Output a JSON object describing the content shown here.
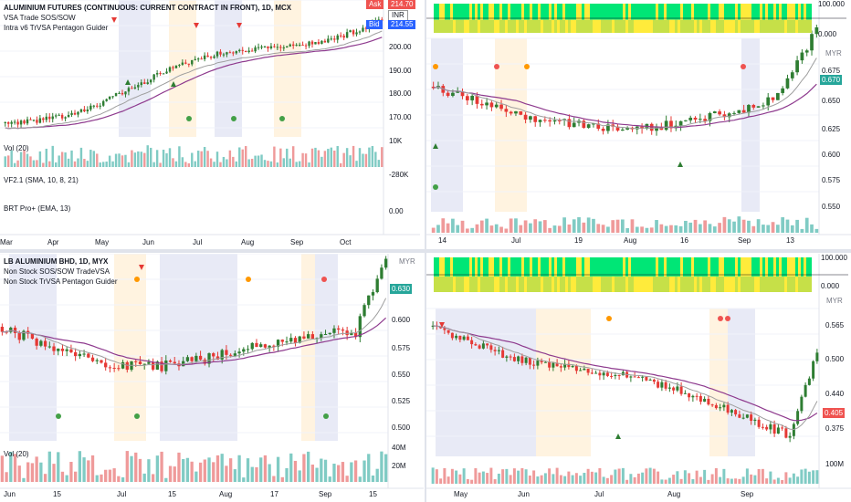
{
  "panels": {
    "tl": {
      "title": "ALUMINIUM FUTURES (CONTINUOUS: CURRENT CONTRACT IN FRONT), 1D, MCX",
      "study1": "VSA Trade SOS/SOW",
      "study2": "Intra v6 TrVSA Pentagon Guider",
      "vol": "Vol (20)",
      "ind1": "VF2.1 (SMA, 10, 8, 21)",
      "ind2": "BRT Pro+ (EMA, 13)",
      "ask_label": "Ask",
      "bid_label": "Bid",
      "ask_value": "214.70",
      "bid_value": "214.55",
      "currency": "INR",
      "yticks": [
        "200.00",
        "190.00",
        "180.00",
        "170.00"
      ],
      "vol_tick": "10K",
      "ind_tick": "-280K",
      "brt_tick": "0.00",
      "xticks": [
        "Mar",
        "Apr",
        "May",
        "Jun",
        "Jul",
        "Aug",
        "Sep",
        "Oct"
      ]
    },
    "tr": {
      "yticks_top": [
        "100.000",
        "0.000"
      ],
      "currency": "MYR",
      "yticks": [
        "0.675",
        "0.650",
        "0.625",
        "0.600",
        "0.575",
        "0.550"
      ],
      "last_price": "0.670",
      "xticks": [
        "14",
        "Jul",
        "19",
        "Aug",
        "16",
        "Sep",
        "13"
      ]
    },
    "bl": {
      "title": "LB ALUMINIUM BHD, 1D, MYX",
      "study1": "Non Stock SOS/SOW TradeVSA",
      "study2": "Non Stock TrVSA Pentagon Guider",
      "vol": "Vol (20)",
      "currency": "MYR",
      "yticks": [
        "0.600",
        "0.575",
        "0.550",
        "0.525",
        "0.500"
      ],
      "last_price": "0.630",
      "vol_ticks": [
        "40M",
        "20M"
      ],
      "xticks": [
        "Jun",
        "15",
        "Jul",
        "15",
        "Aug",
        "17",
        "Sep",
        "15"
      ]
    },
    "br": {
      "yticks_top": [
        "100.000",
        "0.000"
      ],
      "currency": "MYR",
      "yticks": [
        "0.565",
        "0.500",
        "0.440",
        "0.375"
      ],
      "last_price": "0.405",
      "vol_tick": "100M",
      "xticks": [
        "May",
        "Jun",
        "Jul",
        "Aug",
        "Sep"
      ]
    }
  },
  "colors": {
    "up": "#26a69a",
    "down": "#ef5350",
    "green_candle": "#2e7d32",
    "red_candle": "#e53935",
    "ma": "#8e3a8e",
    "ma2": "#9e9e9e",
    "last_price": "#26a69a",
    "ask": "#ef5350",
    "bid": "#2962ff"
  }
}
